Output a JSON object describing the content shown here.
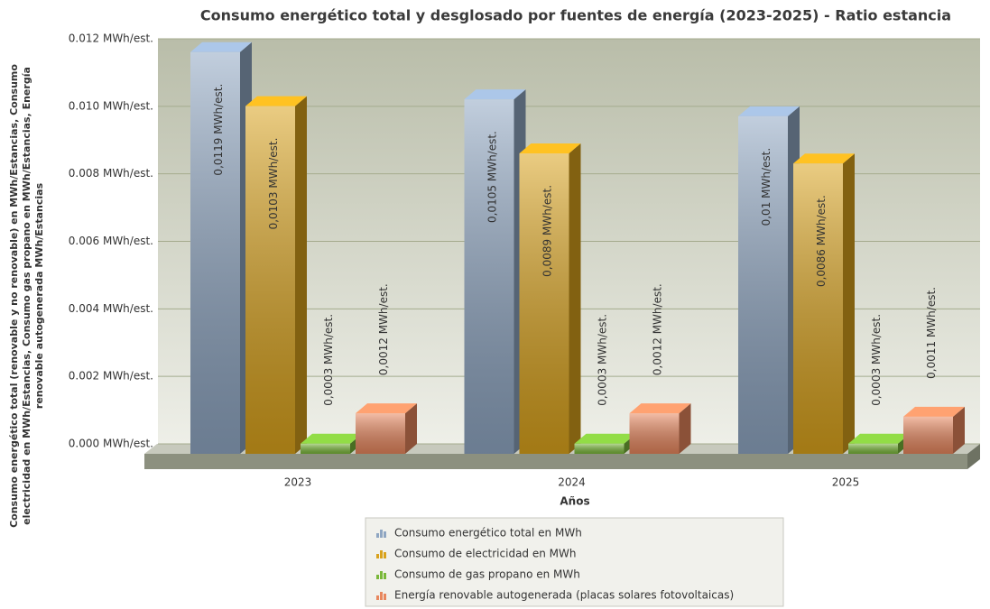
{
  "chart_data": {
    "type": "bar3d",
    "title": "Consumo energético total y desglosado por fuentes de energía (2023-2025) - Ratio estancia",
    "ylabel": [
      "Consumo energético total (renovable y no renovable) en MWh/Estancias, Consumo",
      "electricidad en MWh/Estancias, Consumo gas propano en MWh/Estancias, Energía",
      "renovable autogenerada MWh/Estancias"
    ],
    "xlabel": "Años",
    "categories": [
      "2023",
      "2024",
      "2025"
    ],
    "series": [
      {
        "name": "Consumo energético total en MWh",
        "color": "#8fa6c2",
        "values": [
          0.0119,
          0.0105,
          0.01
        ],
        "value_labels": [
          "0,0119 MWh/est.",
          "0,0105 MWh/est.",
          "0,01 MWh/est."
        ]
      },
      {
        "name": "Consumo de electricidad en MWh",
        "color": "#d9a21c",
        "values": [
          0.0103,
          0.0089,
          0.0086
        ],
        "value_labels": [
          "0,0103 MWh/est.",
          "0,0089 MWh/est.",
          "0,0086 MWh/est."
        ]
      },
      {
        "name": "Consumo de gas propano en MWh",
        "color": "#7ab83a",
        "values": [
          0.0003,
          0.0003,
          0.0003
        ],
        "value_labels": [
          "0,0003 MWh/est.",
          "0,0003 MWh/est.",
          "0,0003 MWh/est."
        ]
      },
      {
        "name": "Energía renovable autogenerada (placas solares fotovoltaicas)",
        "color": "#e8875e",
        "values": [
          0.0012,
          0.0012,
          0.0011
        ],
        "value_labels": [
          "0,0012 MWh/est.",
          "0,0012 MWh/est.",
          "0,0011 MWh/est."
        ]
      }
    ],
    "ylim": [
      0,
      0.012
    ],
    "yticks": [
      {
        "value": 0,
        "label": "0.000 MWh/est."
      },
      {
        "value": 0.002,
        "label": "0.002 MWh/est."
      },
      {
        "value": 0.004,
        "label": "0.004 MWh/est."
      },
      {
        "value": 0.006,
        "label": "0.006 MWh/est."
      },
      {
        "value": 0.008,
        "label": "0.008 MWh/est."
      },
      {
        "value": 0.01,
        "label": "0.010 MWh/est."
      },
      {
        "value": 0.012,
        "label": "0.012 MWh/est."
      }
    ],
    "grid": true
  }
}
